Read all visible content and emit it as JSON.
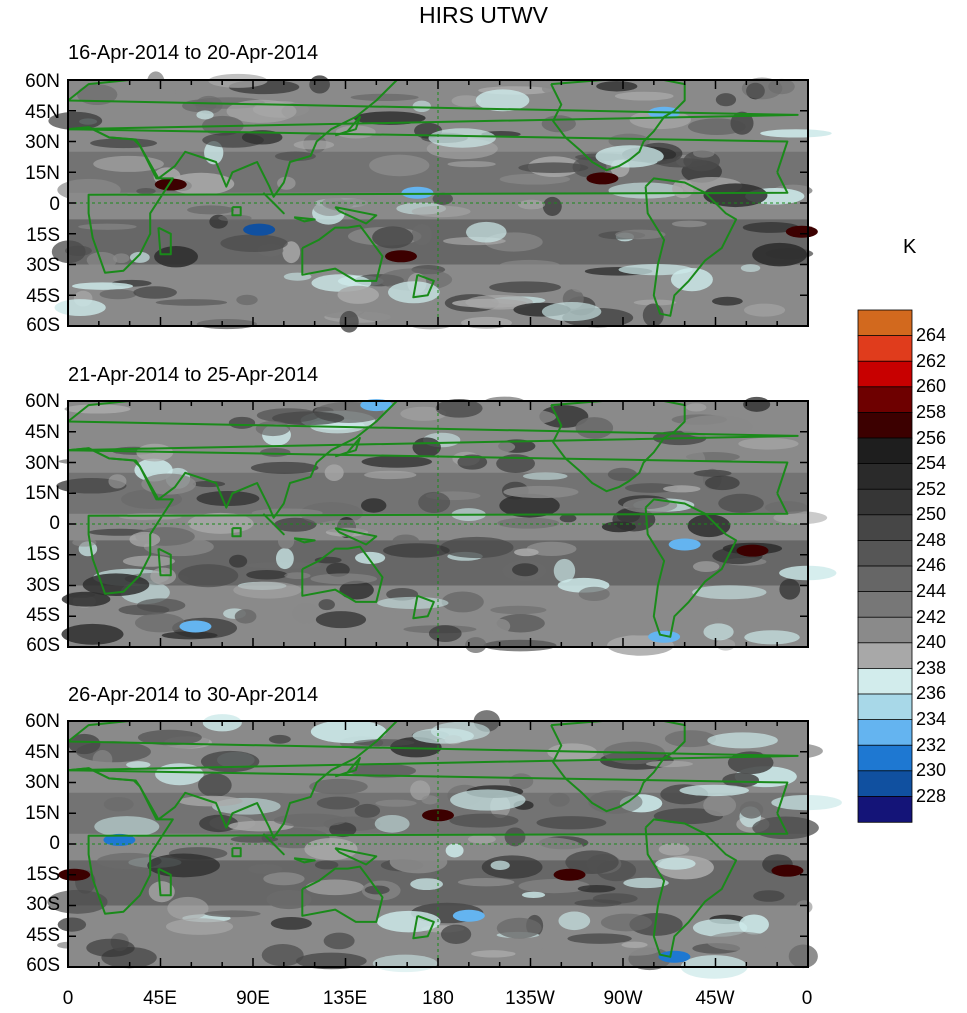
{
  "title": "HIRS UTWV",
  "chart_data": [
    {
      "type": "heatmap",
      "title": "16-Apr-2014 to 20-Apr-2014",
      "lat_ticks": [
        "60N",
        "45N",
        "30N",
        "15N",
        "0",
        "15S",
        "30S",
        "45S",
        "60S"
      ],
      "lat_range": [
        -60,
        60
      ],
      "lon_range": [
        0,
        360
      ],
      "hotspots": [
        {
          "lon": 50,
          "lat": 9,
          "value": 258
        },
        {
          "lon": 260,
          "lat": 12,
          "value": 258
        },
        {
          "lon": 162,
          "lat": -26,
          "value": 258
        },
        {
          "lon": 357,
          "lat": -14,
          "value": 258
        },
        {
          "lon": 93,
          "lat": -13,
          "value": 230
        },
        {
          "lon": 170,
          "lat": 5,
          "value": 234
        },
        {
          "lon": 290,
          "lat": 44,
          "value": 234
        }
      ]
    },
    {
      "type": "heatmap",
      "title": "21-Apr-2014 to 25-Apr-2014",
      "lat_ticks": [
        "60N",
        "45N",
        "30N",
        "15N",
        "0",
        "15S",
        "30S",
        "45S",
        "60S"
      ],
      "lat_range": [
        -60,
        60
      ],
      "lon_range": [
        0,
        360
      ],
      "hotspots": [
        {
          "lon": 333,
          "lat": -13,
          "value": 258
        },
        {
          "lon": 300,
          "lat": -10,
          "value": 234
        },
        {
          "lon": 290,
          "lat": -55,
          "value": 234
        },
        {
          "lon": 150,
          "lat": 58,
          "value": 234
        },
        {
          "lon": 62,
          "lat": -50,
          "value": 234
        }
      ]
    },
    {
      "type": "heatmap",
      "title": "26-Apr-2014 to 30-Apr-2014",
      "lat_ticks": [
        "60N",
        "45N",
        "30N",
        "15N",
        "0",
        "15S",
        "30S",
        "45S",
        "60S"
      ],
      "lat_range": [
        -60,
        60
      ],
      "lon_range": [
        0,
        360
      ],
      "hotspots": [
        {
          "lon": 3,
          "lat": -15,
          "value": 258
        },
        {
          "lon": 180,
          "lat": 14,
          "value": 258
        },
        {
          "lon": 244,
          "lat": -15,
          "value": 258
        },
        {
          "lon": 350,
          "lat": -13,
          "value": 258
        },
        {
          "lon": 25,
          "lat": 2,
          "value": 232
        },
        {
          "lon": 295,
          "lat": -55,
          "value": 232
        },
        {
          "lon": 195,
          "lat": -35,
          "value": 234
        }
      ]
    }
  ],
  "lon_ticks": [
    "0",
    "45E",
    "90E",
    "135E",
    "180",
    "135W",
    "90W",
    "45W",
    "0"
  ],
  "colorbar": {
    "unit": "K",
    "labels": [
      "264",
      "262",
      "260",
      "258",
      "256",
      "254",
      "252",
      "250",
      "248",
      "246",
      "244",
      "242",
      "240",
      "238",
      "236",
      "234",
      "232",
      "230",
      "228"
    ],
    "colors": [
      "#d2691e",
      "#e03c1c",
      "#c80000",
      "#6e0000",
      "#3c0000",
      "#1e1e1e",
      "#2a2a2a",
      "#363636",
      "#464646",
      "#565656",
      "#666666",
      "#777777",
      "#8a8a8a",
      "#a8a8a8",
      "#d2ecec",
      "#a8d8e8",
      "#64b4f0",
      "#1e78d2",
      "#1050a0",
      "#141478"
    ]
  },
  "map_colors": {
    "coast": "#1a8a1a",
    "bands": [
      "#cdeaea",
      "#a9a9a9",
      "#8a8a8a",
      "#6a6a6a",
      "#4a4a4a",
      "#2e2e2e"
    ]
  }
}
